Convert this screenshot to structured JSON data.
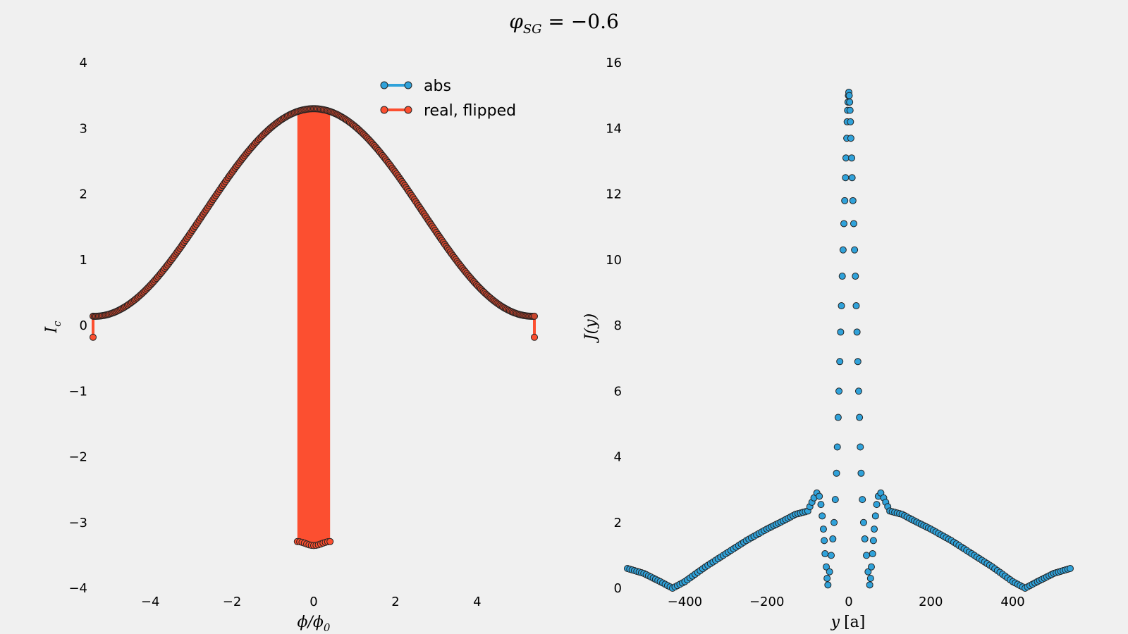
{
  "figure": {
    "suptitle": "φSG = −0.6",
    "suptitle_var": "φ",
    "suptitle_sub": "SG",
    "suptitle_rest": " = −0.6",
    "background": "#f0f0f0"
  },
  "legend": {
    "entries": [
      {
        "label": "abs",
        "color": "#30a2da"
      },
      {
        "label": "real, flipped",
        "color": "#fc4f30"
      }
    ]
  },
  "chart_data": [
    {
      "type": "line",
      "xlabel": "ϕ/ϕ0",
      "xlabel_main": "ϕ/ϕ",
      "xlabel_sub": "0",
      "ylabel": "Ic",
      "ylabel_main": "I",
      "ylabel_sub": "c",
      "xlim": [
        -5.4,
        5.4
      ],
      "ylim": [
        -4,
        4
      ],
      "xticks": [
        -4,
        -2,
        0,
        2,
        4
      ],
      "yticks": [
        -4,
        -3,
        -2,
        -1,
        0,
        1,
        2,
        3,
        4
      ],
      "grid": false,
      "legend_position": "top-right",
      "series": [
        {
          "name": "abs",
          "color": "#30a2da",
          "model": {
            "kind": "fraunhofer_like",
            "peak": 3.3,
            "period": 10.7,
            "baseline": 0.14
          }
        },
        {
          "name": "real, flipped",
          "color": "#fc4f30",
          "model": {
            "kind": "fraunhofer_like_with_flip",
            "peak": 3.3,
            "period": 10.7,
            "flip_band": [
              -0.4,
              0.4
            ],
            "flip_value": -3.32,
            "edge_value": -0.18
          }
        }
      ]
    },
    {
      "type": "scatter",
      "xlabel": "y [a]",
      "xlabel_main": "y",
      "xlabel_unit": "[a]",
      "ylabel": "J(y)",
      "xlim": [
        -540,
        540
      ],
      "ylim": [
        0,
        16
      ],
      "xticks": [
        -400,
        -200,
        0,
        200,
        400
      ],
      "yticks": [
        0,
        2,
        4,
        6,
        8,
        10,
        12,
        14,
        16
      ],
      "grid": false,
      "series": [
        {
          "name": "abs",
          "color": "#30a2da",
          "points": [
            [
              -540,
              0.6
            ],
            [
              -500,
              0.45
            ],
            [
              -460,
              0.2
            ],
            [
              -430,
              0.0
            ],
            [
              -400,
              0.2
            ],
            [
              -350,
              0.65
            ],
            [
              -300,
              1.05
            ],
            [
              -250,
              1.45
            ],
            [
              -200,
              1.8
            ],
            [
              -160,
              2.05
            ],
            [
              -130,
              2.25
            ],
            [
              -100,
              2.35
            ],
            [
              -85,
              2.75
            ],
            [
              -78,
              2.9
            ],
            [
              -72,
              2.8
            ],
            [
              -68,
              2.55
            ],
            [
              -65,
              2.2
            ],
            [
              -62,
              1.8
            ],
            [
              -60,
              1.45
            ],
            [
              -58,
              1.05
            ],
            [
              -55,
              0.65
            ],
            [
              -53,
              0.3
            ],
            [
              -51,
              0.1
            ],
            [
              -47,
              0.5
            ],
            [
              -43,
              1.0
            ],
            [
              -39,
              1.5
            ],
            [
              -36,
              2.0
            ],
            [
              -33,
              2.7
            ],
            [
              -30,
              3.5
            ],
            [
              -28,
              4.3
            ],
            [
              -26,
              5.2
            ],
            [
              -24,
              6.0
            ],
            [
              -22,
              6.9
            ],
            [
              -20,
              7.8
            ],
            [
              -18,
              8.6
            ],
            [
              -16,
              9.5
            ],
            [
              -14,
              10.3
            ],
            [
              -12,
              11.1
            ],
            [
              -10,
              11.8
            ],
            [
              -8,
              12.5
            ],
            [
              -7,
              13.1
            ],
            [
              -5,
              13.7
            ],
            [
              -4,
              14.2
            ],
            [
              -3,
              14.55
            ],
            [
              -2,
              14.8
            ],
            [
              -1,
              15.0
            ],
            [
              0,
              15.1
            ],
            [
              1,
              15.0
            ],
            [
              2,
              14.8
            ],
            [
              3,
              14.55
            ],
            [
              4,
              14.2
            ],
            [
              5,
              13.7
            ],
            [
              7,
              13.1
            ],
            [
              8,
              12.5
            ],
            [
              10,
              11.8
            ],
            [
              12,
              11.1
            ],
            [
              14,
              10.3
            ],
            [
              16,
              9.5
            ],
            [
              18,
              8.6
            ],
            [
              20,
              7.8
            ],
            [
              22,
              6.9
            ],
            [
              24,
              6.0
            ],
            [
              26,
              5.2
            ],
            [
              28,
              4.3
            ],
            [
              30,
              3.5
            ],
            [
              33,
              2.7
            ],
            [
              36,
              2.0
            ],
            [
              39,
              1.5
            ],
            [
              43,
              1.0
            ],
            [
              47,
              0.5
            ],
            [
              51,
              0.1
            ],
            [
              53,
              0.3
            ],
            [
              55,
              0.65
            ],
            [
              58,
              1.05
            ],
            [
              60,
              1.45
            ],
            [
              62,
              1.8
            ],
            [
              65,
              2.2
            ],
            [
              68,
              2.55
            ],
            [
              72,
              2.8
            ],
            [
              78,
              2.9
            ],
            [
              85,
              2.75
            ],
            [
              100,
              2.35
            ],
            [
              130,
              2.25
            ],
            [
              160,
              2.05
            ],
            [
              200,
              1.8
            ],
            [
              250,
              1.45
            ],
            [
              300,
              1.05
            ],
            [
              350,
              0.65
            ],
            [
              400,
              0.2
            ],
            [
              430,
              0.0
            ],
            [
              460,
              0.2
            ],
            [
              500,
              0.45
            ],
            [
              540,
              0.6
            ]
          ]
        }
      ]
    }
  ]
}
